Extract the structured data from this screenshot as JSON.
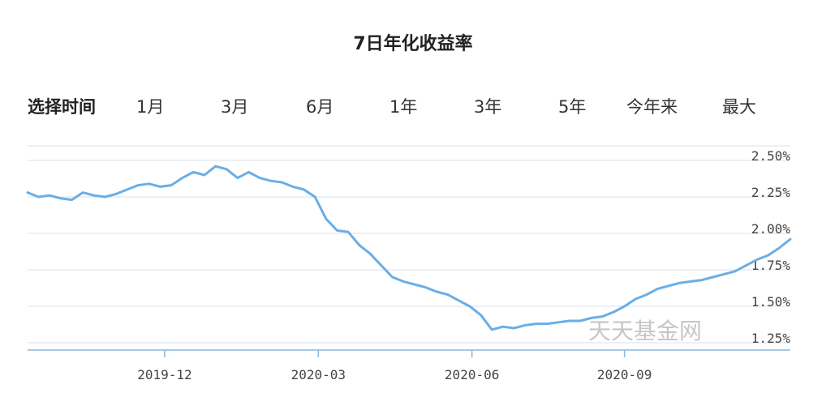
{
  "title": "7日年化收益率",
  "range_selector": {
    "label": "选择时间",
    "options": [
      "1月",
      "3月",
      "6月",
      "1年",
      "3年",
      "5年",
      "今年来",
      "最大"
    ]
  },
  "watermark": "天天基金网",
  "colors": {
    "line": "#6aaee6",
    "grid": "#d9e2ec",
    "axis": "#8fb5d8"
  },
  "chart_data": {
    "type": "line",
    "title": "7日年化收益率",
    "x_ticks": [
      "2019-12",
      "2020-03",
      "2020-06",
      "2020-09"
    ],
    "y_ticks": [
      "2.50%",
      "2.25%",
      "2.00%",
      "1.75%",
      "1.50%",
      "1.25%"
    ],
    "ylim": [
      1.2,
      2.6
    ],
    "grid": true,
    "series": [
      {
        "values": [
          2.28,
          2.25,
          2.26,
          2.24,
          2.23,
          2.28,
          2.26,
          2.25,
          2.27,
          2.3,
          2.33,
          2.34,
          2.32,
          2.33,
          2.38,
          2.42,
          2.4,
          2.46,
          2.44,
          2.38,
          2.42,
          2.38,
          2.36,
          2.35,
          2.32,
          2.3,
          2.25,
          2.1,
          2.02,
          2.01,
          1.92,
          1.86,
          1.78,
          1.7,
          1.67,
          1.65,
          1.63,
          1.6,
          1.58,
          1.54,
          1.5,
          1.44,
          1.34,
          1.36,
          1.35,
          1.37,
          1.38,
          1.38,
          1.39,
          1.4,
          1.4,
          1.42,
          1.43,
          1.46,
          1.5,
          1.55,
          1.58,
          1.62,
          1.64,
          1.66,
          1.67,
          1.68,
          1.7,
          1.72,
          1.74,
          1.78,
          1.82,
          1.85,
          1.9,
          1.96
        ]
      }
    ]
  }
}
